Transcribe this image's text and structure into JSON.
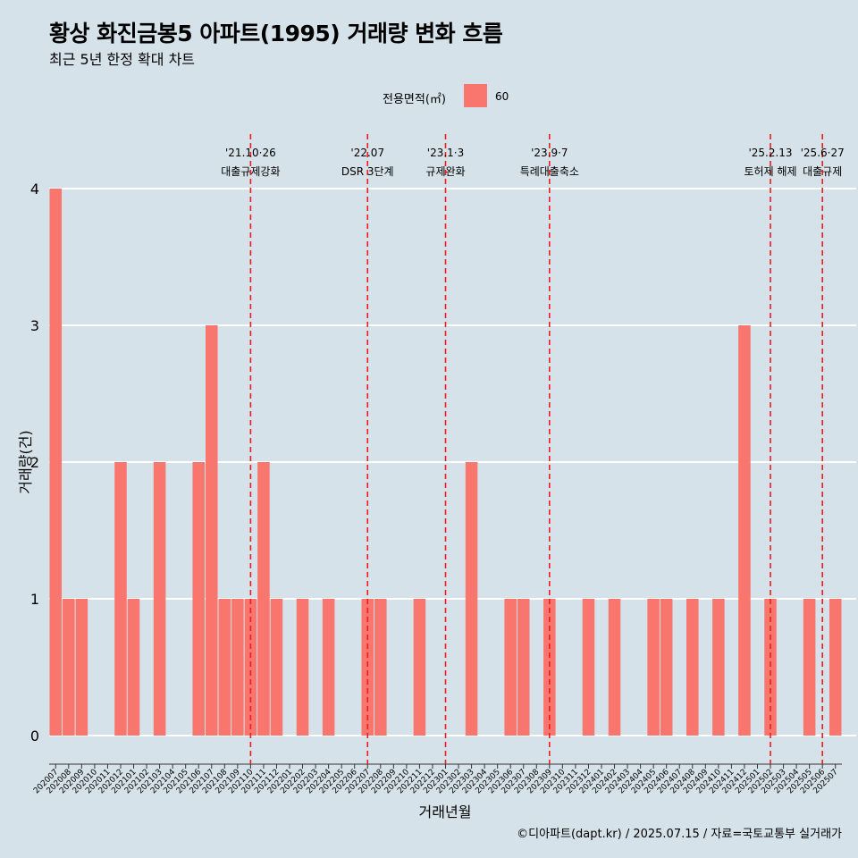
{
  "title": "황상 화진금봉5 아파트(1995) 거래량 변화 흐름",
  "subtitle": "최근 5년 한정 확대 차트",
  "legend": {
    "title": "전용면적(㎡)",
    "items": [
      {
        "label": "60",
        "color": "#f8766d"
      }
    ]
  },
  "caption": "©디아파트(dapt.kr) / 2025.07.15 / 자료=국토교통부 실거래가",
  "chart_data": {
    "type": "bar",
    "xlabel": "거래년월",
    "ylabel": "거래량(건)",
    "ylim": [
      0,
      4
    ],
    "yticks": [
      0,
      1,
      2,
      3,
      4
    ],
    "grid": true,
    "legend_position": "top",
    "categories": [
      "202007",
      "202008",
      "202009",
      "202010",
      "202011",
      "202012",
      "202101",
      "202102",
      "202103",
      "202104",
      "202105",
      "202106",
      "202107",
      "202108",
      "202109",
      "202110",
      "202111",
      "202112",
      "202201",
      "202202",
      "202203",
      "202204",
      "202205",
      "202206",
      "202207",
      "202208",
      "202209",
      "202210",
      "202211",
      "202212",
      "202301",
      "202302",
      "202303",
      "202304",
      "202305",
      "202306",
      "202307",
      "202308",
      "202309",
      "202310",
      "202311",
      "202312",
      "202401",
      "202402",
      "202403",
      "202404",
      "202405",
      "202406",
      "202407",
      "202408",
      "202409",
      "202410",
      "202411",
      "202412",
      "202501",
      "202502",
      "202503",
      "202504",
      "202505",
      "202506",
      "202507"
    ],
    "series": [
      {
        "name": "60",
        "color": "#f8766d",
        "values": [
          4,
          1,
          1,
          0,
          0,
          2,
          1,
          0,
          2,
          0,
          0,
          2,
          3,
          1,
          1,
          1,
          2,
          1,
          0,
          1,
          0,
          1,
          0,
          0,
          1,
          1,
          0,
          0,
          1,
          0,
          0,
          0,
          2,
          0,
          0,
          1,
          1,
          0,
          1,
          0,
          0,
          1,
          0,
          1,
          0,
          0,
          1,
          1,
          0,
          1,
          0,
          1,
          0,
          3,
          0,
          1,
          0,
          0,
          1,
          0,
          1
        ]
      }
    ],
    "annotations": [
      {
        "x": "202110",
        "date": "'21.10·26",
        "label": "대출규제강화"
      },
      {
        "x": "202207",
        "date": "'22.07",
        "label": "DSR 3단계"
      },
      {
        "x": "202301",
        "date": "'23.1·3",
        "label": "규제완화"
      },
      {
        "x": "202309",
        "date": "'23.9·7",
        "label": "특례대출축소"
      },
      {
        "x": "202502",
        "date": "'25.2.13",
        "label": "토허제 해제"
      },
      {
        "x": "202506",
        "date": "'25.6·27",
        "label": "대출규제"
      }
    ]
  }
}
